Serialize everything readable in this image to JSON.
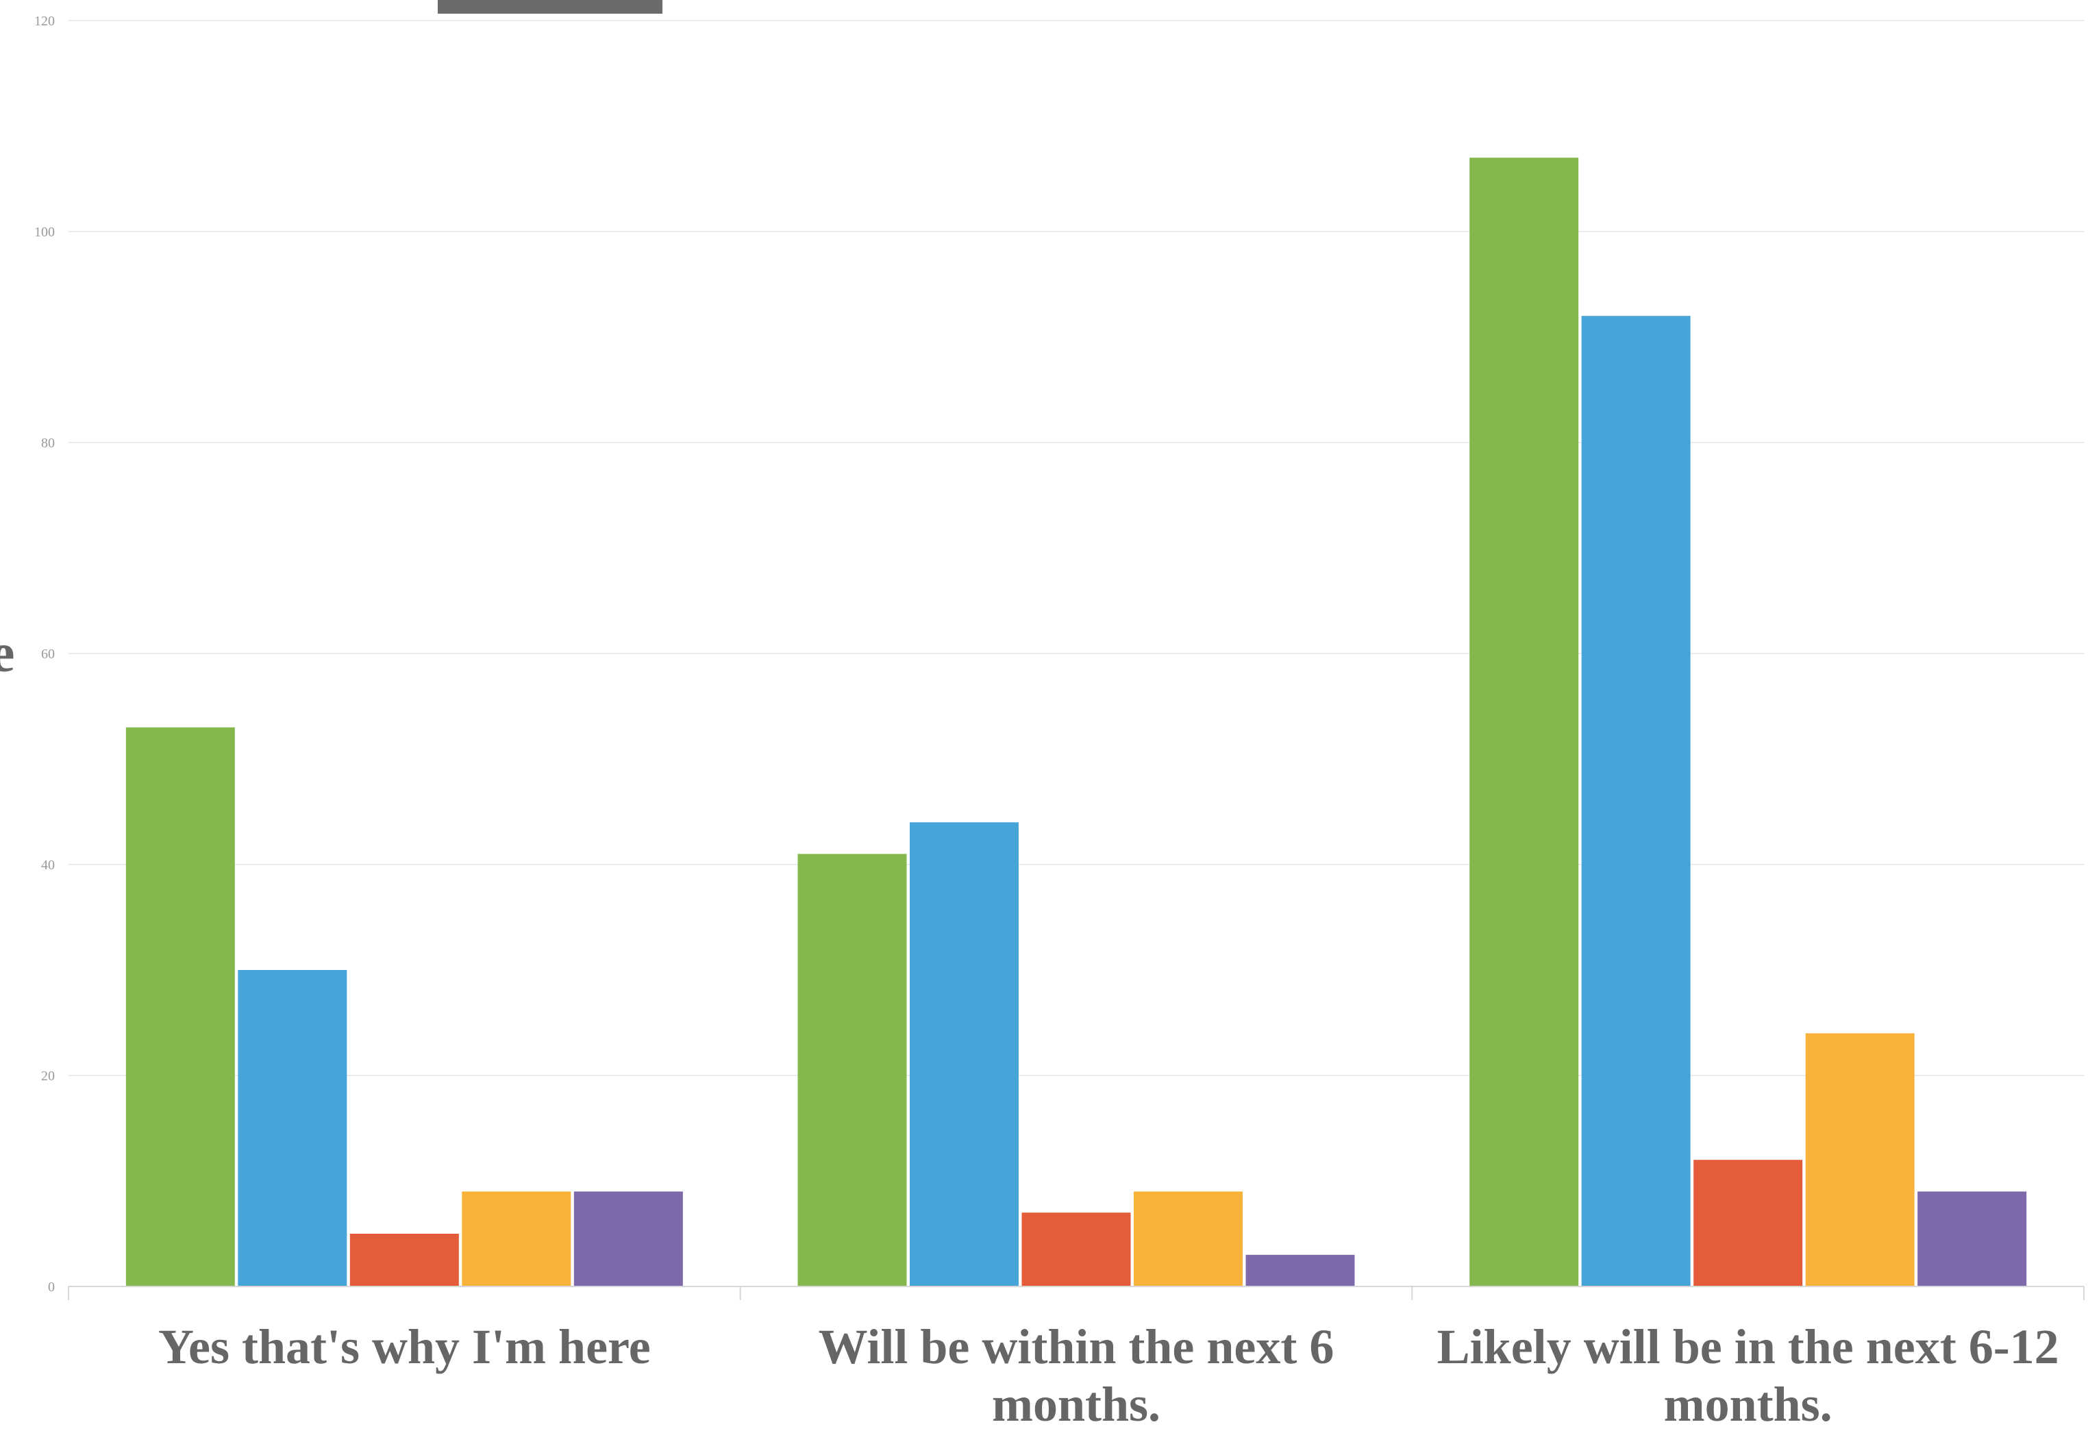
{
  "chart_data": {
    "type": "bar",
    "categories": [
      [
        "Yes that's why I'm here"
      ],
      [
        "Will be within the next 6",
        "months."
      ],
      [
        "Likely will be in the next 6-12",
        "months."
      ]
    ],
    "series": [
      {
        "color": "#84b84e",
        "values": [
          53,
          41,
          107
        ]
      },
      {
        "color": "#47a4d9",
        "values": [
          30,
          44,
          92
        ]
      },
      {
        "color": "#e45c3a",
        "values": [
          5,
          7,
          12
        ]
      },
      {
        "color": "#f8b23a",
        "values": [
          9,
          9,
          24
        ]
      },
      {
        "color": "#7e6aab",
        "values": [
          9,
          3,
          9
        ]
      }
    ],
    "ylim": [
      0,
      120
    ],
    "yticks": [
      "0",
      "20",
      "40",
      "60",
      "80",
      "100",
      "120"
    ],
    "grid": true,
    "legend_marker_color": "#6b6b6b"
  }
}
